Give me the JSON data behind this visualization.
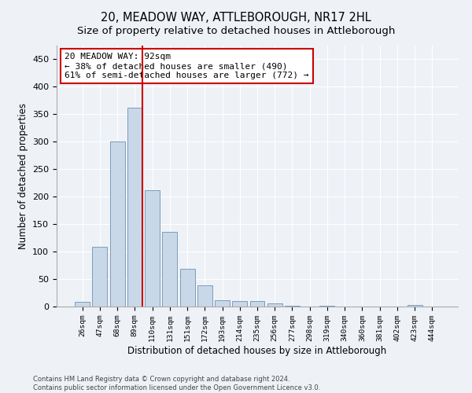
{
  "title": "20, MEADOW WAY, ATTLEBOROUGH, NR17 2HL",
  "subtitle": "Size of property relative to detached houses in Attleborough",
  "xlabel": "Distribution of detached houses by size in Attleborough",
  "ylabel": "Number of detached properties",
  "categories": [
    "26sqm",
    "47sqm",
    "68sqm",
    "89sqm",
    "110sqm",
    "131sqm",
    "151sqm",
    "172sqm",
    "193sqm",
    "214sqm",
    "235sqm",
    "256sqm",
    "277sqm",
    "298sqm",
    "319sqm",
    "340sqm",
    "360sqm",
    "381sqm",
    "402sqm",
    "423sqm",
    "444sqm"
  ],
  "values": [
    8,
    108,
    300,
    362,
    212,
    136,
    68,
    38,
    12,
    10,
    10,
    6,
    2,
    0,
    2,
    0,
    0,
    0,
    0,
    3,
    0
  ],
  "bar_color": "#c8d8e8",
  "bar_edgecolor": "#7090b0",
  "vline_color": "#cc0000",
  "annotation_line1": "20 MEADOW WAY: 92sqm",
  "annotation_line2": "← 38% of detached houses are smaller (490)",
  "annotation_line3": "61% of semi-detached houses are larger (772) →",
  "box_edgecolor": "#cc0000",
  "ylim": [
    0,
    475
  ],
  "yticks": [
    0,
    50,
    100,
    150,
    200,
    250,
    300,
    350,
    400,
    450
  ],
  "title_fontsize": 10.5,
  "subtitle_fontsize": 9.5,
  "xlabel_fontsize": 8.5,
  "ylabel_fontsize": 8.5,
  "footer": "Contains HM Land Registry data © Crown copyright and database right 2024.\nContains public sector information licensed under the Open Government Licence v3.0.",
  "bg_color": "#eef2f7",
  "plot_bg_color": "#eef2f7",
  "grid_color": "#ffffff"
}
